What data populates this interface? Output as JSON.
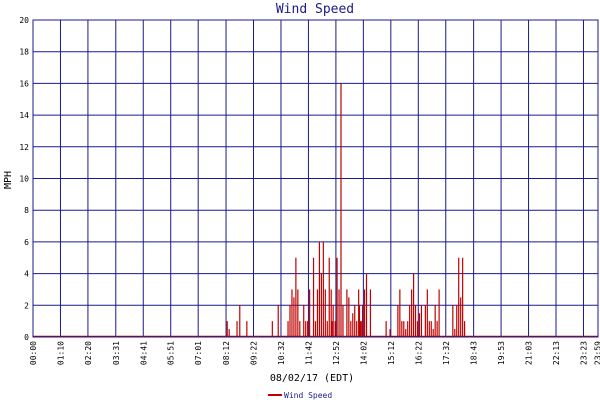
{
  "chart_data": {
    "type": "bar",
    "title": "Wind Speed",
    "xlabel": "08/02/17 (EDT)",
    "ylabel": "MPH",
    "ylim": [
      0,
      20
    ],
    "yticks": [
      0,
      2,
      4,
      6,
      8,
      10,
      12,
      14,
      16,
      18,
      20
    ],
    "xrange_minutes": [
      0,
      1440
    ],
    "xtick_labels": [
      "00:00",
      "01:10",
      "02:20",
      "03:31",
      "04:41",
      "05:51",
      "07:01",
      "08:12",
      "09:22",
      "10:32",
      "11:42",
      "12:52",
      "14:02",
      "15:12",
      "16:22",
      "17:32",
      "18:43",
      "19:53",
      "21:03",
      "22:13",
      "23:23",
      "23:59"
    ],
    "xtick_minutes": [
      0,
      70,
      140,
      211,
      281,
      351,
      421,
      492,
      562,
      632,
      702,
      772,
      842,
      912,
      982,
      1052,
      1123,
      1193,
      1263,
      1333,
      1403,
      1439
    ],
    "grid": true,
    "legend_position": "bottom",
    "colors": {
      "series": "#c00000",
      "grid": "#1a1a8c",
      "title": "#1a1a8c"
    },
    "series": [
      {
        "name": "Wind Speed",
        "x_minutes": [
          495,
          500,
          520,
          527,
          545,
          610,
          625,
          650,
          655,
          660,
          665,
          670,
          675,
          680,
          690,
          695,
          700,
          705,
          715,
          720,
          725,
          730,
          735,
          740,
          745,
          750,
          755,
          760,
          762,
          765,
          770,
          775,
          780,
          785,
          790,
          800,
          805,
          810,
          815,
          820,
          825,
          830,
          832,
          835,
          838,
          840,
          845,
          850,
          860,
          900,
          910,
          930,
          935,
          940,
          945,
          950,
          955,
          960,
          965,
          970,
          975,
          980,
          985,
          990,
          1000,
          1005,
          1010,
          1015,
          1020,
          1025,
          1030,
          1035,
          1070,
          1075,
          1080,
          1085,
          1090,
          1095,
          1100
        ],
        "values": [
          1,
          0.5,
          1,
          2,
          1,
          1,
          2,
          1,
          2,
          3,
          2.5,
          5,
          3,
          1,
          2,
          1,
          1,
          3,
          5,
          1,
          3,
          6,
          4,
          6,
          3,
          1,
          5,
          3,
          1,
          2,
          1,
          5,
          3,
          16,
          2,
          3,
          2.5,
          1,
          1.5,
          2,
          1,
          3,
          2,
          1,
          1,
          2,
          3,
          4,
          3,
          1,
          0.5,
          2,
          3,
          1,
          1,
          0.5,
          1,
          2,
          3,
          4,
          2,
          1,
          1.5,
          2,
          2,
          3,
          1,
          1,
          0.5,
          2,
          1,
          3,
          2,
          0.5,
          2,
          5,
          2.5,
          5,
          1
        ]
      }
    ]
  }
}
